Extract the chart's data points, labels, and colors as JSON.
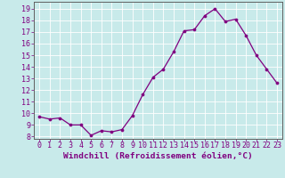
{
  "x": [
    0,
    1,
    2,
    3,
    4,
    5,
    6,
    7,
    8,
    9,
    10,
    11,
    12,
    13,
    14,
    15,
    16,
    17,
    18,
    19,
    20,
    21,
    22,
    23
  ],
  "y": [
    9.7,
    9.5,
    9.6,
    9.0,
    9.0,
    8.1,
    8.5,
    8.4,
    8.6,
    9.8,
    11.6,
    13.1,
    13.8,
    15.3,
    17.1,
    17.2,
    18.4,
    19.0,
    17.9,
    18.1,
    16.7,
    15.0,
    13.8,
    12.6
  ],
  "line_color": "#800080",
  "marker": "o",
  "marker_size": 2.2,
  "bg_color": "#c8eaea",
  "grid_color": "#b0d8d8",
  "border_color": "#606060",
  "xlabel": "Windchill (Refroidissement éolien,°C)",
  "xlabel_color": "#800080",
  "ylabel_ticks": [
    8,
    9,
    10,
    11,
    12,
    13,
    14,
    15,
    16,
    17,
    18,
    19
  ],
  "ylim": [
    7.8,
    19.6
  ],
  "xlim": [
    -0.5,
    23.5
  ],
  "tick_color": "#800080",
  "label_fontsize": 6.8,
  "tick_fontsize": 6.0
}
